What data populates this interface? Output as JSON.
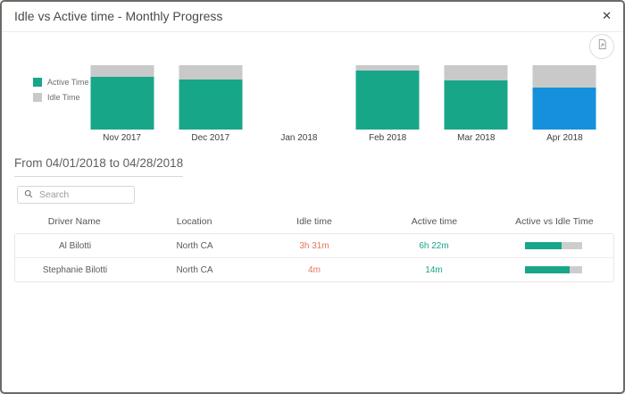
{
  "modal": {
    "title": "Idle vs Active time - Monthly Progress",
    "close_glyph": "✕"
  },
  "chart": {
    "legend": [
      {
        "label": "Active Time",
        "color_key": "active"
      },
      {
        "label": "Idle Time",
        "color_key": "idle"
      }
    ],
    "colors": {
      "active": "#18A689",
      "idle": "#C9C9C9",
      "highlight": "#1591DC"
    },
    "months": [
      {
        "label": "Nov 2017",
        "active_pct": 82,
        "idle_pct": 18,
        "highlighted": false
      },
      {
        "label": "Dec 2017",
        "active_pct": 78,
        "idle_pct": 22,
        "highlighted": false
      },
      {
        "label": "Jan 2018",
        "active_pct": 0,
        "idle_pct": 0,
        "highlighted": false
      },
      {
        "label": "Feb 2018",
        "active_pct": 92,
        "idle_pct": 8,
        "highlighted": false
      },
      {
        "label": "Mar 2018",
        "active_pct": 77,
        "idle_pct": 23,
        "highlighted": false
      },
      {
        "label": "Apr 2018",
        "active_pct": 65,
        "idle_pct": 35,
        "highlighted": true
      }
    ]
  },
  "chart_data": {
    "type": "bar",
    "stacked": true,
    "units": "percent of month total",
    "categories": [
      "Nov 2017",
      "Dec 2017",
      "Jan 2018",
      "Feb 2018",
      "Mar 2018",
      "Apr 2018"
    ],
    "series": [
      {
        "name": "Active Time",
        "values": [
          82,
          78,
          null,
          92,
          77,
          65
        ]
      },
      {
        "name": "Idle Time",
        "values": [
          18,
          22,
          null,
          8,
          23,
          35
        ]
      }
    ],
    "title": "Idle vs Active time - Monthly Progress",
    "legend_position": "left",
    "highlighted_category": "Apr 2018",
    "note": "100% stacked monthly bars; Jan 2018 has no data; Apr 2018 active segment shown in blue (selected month)"
  },
  "filters": {
    "date_range": "From 04/01/2018 to 04/28/2018",
    "search_placeholder": "Search"
  },
  "table": {
    "columns": [
      "Driver Name",
      "Location",
      "Idle time",
      "Active time",
      "Active vs Idle Time"
    ],
    "rows": [
      {
        "driver": "Al Bilotti",
        "location": "North CA",
        "idle_time": "3h 31m",
        "active_time": "6h 22m",
        "active_pct": 64
      },
      {
        "driver": "Stephanie Bilotti",
        "location": "North CA",
        "idle_time": "4m",
        "active_time": "14m",
        "active_pct": 78
      }
    ]
  },
  "status_colors": {
    "idle_text": "#E8745A",
    "active_text": "#17A589"
  }
}
